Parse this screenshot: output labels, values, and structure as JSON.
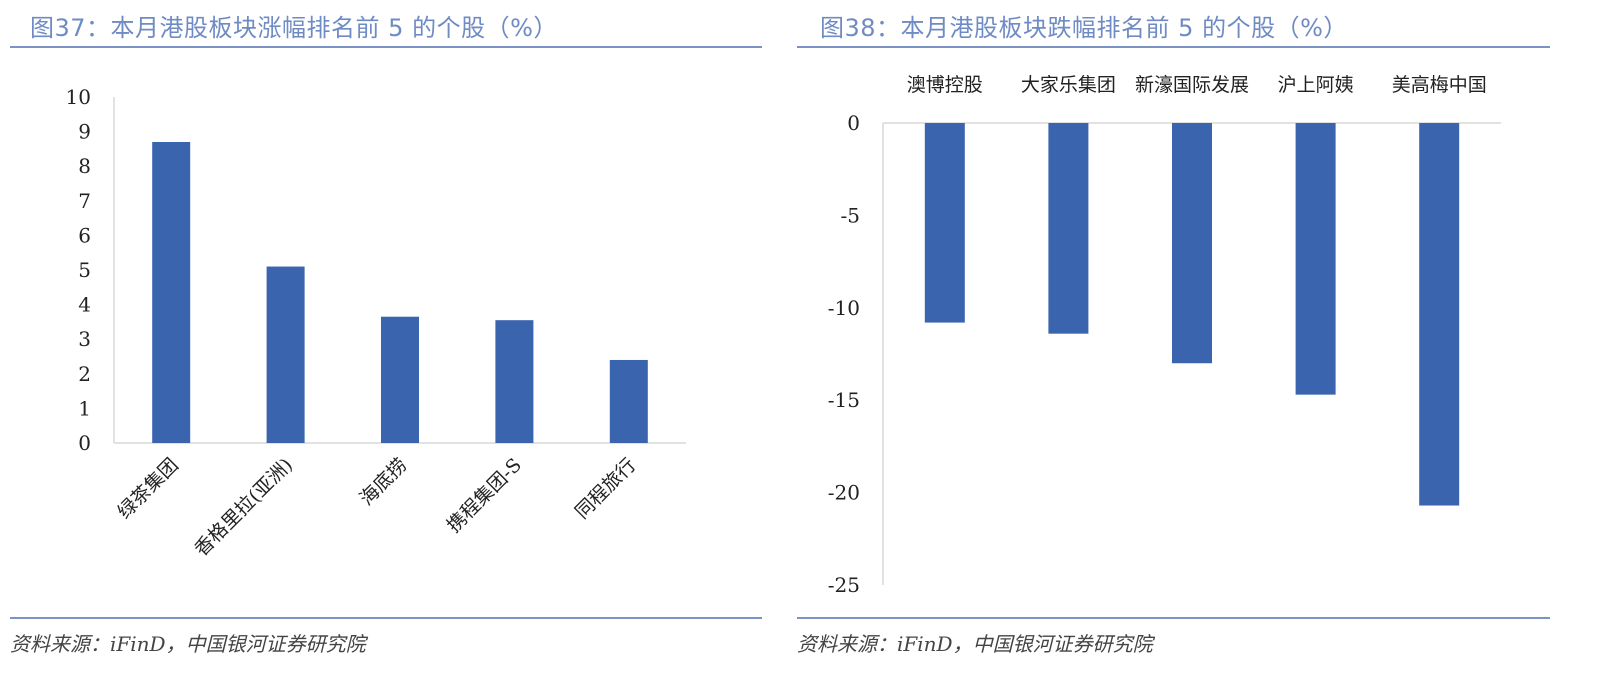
{
  "left": {
    "title": "图37：本月港股板块涨幅排名前 5 的个股（%）",
    "source": "资料来源：iFinD，中国银河证券研究院"
  },
  "right": {
    "title": "图38：本月港股板块跌幅排名前 5 的个股（%）",
    "source": "资料来源：iFinD，中国银河证券研究院"
  },
  "colors": {
    "bar": "#3a64ae",
    "title": "#6f8bc4",
    "rule": "#7a93c3",
    "axis": "#d9d9d9"
  },
  "chart_data": [
    {
      "type": "bar",
      "title": "图37：本月港股板块涨幅排名前 5 的个股（%）",
      "categories": [
        "绿茶集团",
        "香格里拉(亚洲)",
        "海底捞",
        "携程集团-S",
        "同程旅行"
      ],
      "values": [
        8.7,
        5.1,
        3.65,
        3.55,
        2.4
      ],
      "xlabel": "",
      "ylabel": "",
      "ylim": [
        0,
        10
      ],
      "yticks": [
        0,
        1,
        2,
        3,
        4,
        5,
        6,
        7,
        8,
        9,
        10
      ],
      "grid": false,
      "legend": null,
      "xtick_rotation": -45
    },
    {
      "type": "bar",
      "title": "图38：本月港股板块跌幅排名前 5 的个股（%）",
      "categories": [
        "澳博控股",
        "大家乐集团",
        "新濠国际发展",
        "沪上阿姨",
        "美高梅中国"
      ],
      "values": [
        -10.8,
        -11.4,
        -13.0,
        -14.7,
        -20.7
      ],
      "xlabel": "",
      "ylabel": "",
      "ylim": [
        -25,
        0
      ],
      "yticks": [
        0,
        -5,
        -10,
        -15,
        -20,
        -25
      ],
      "grid": false,
      "legend": null,
      "xtick_position": "top"
    }
  ]
}
